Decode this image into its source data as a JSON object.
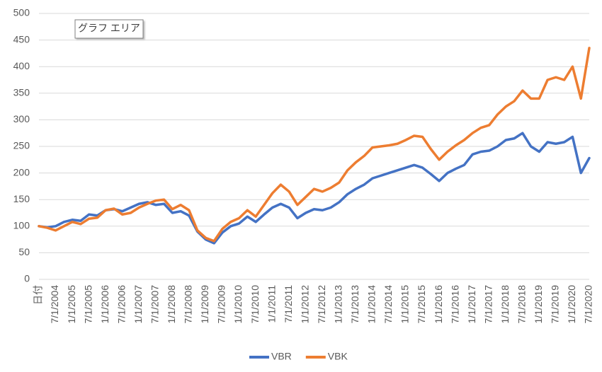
{
  "chart_data": {
    "type": "line",
    "annotation": "グラフ エリア",
    "categories": [
      "日付",
      null,
      "7/1/2004",
      null,
      "1/1/2005",
      null,
      "7/1/2005",
      null,
      "1/1/2006",
      null,
      "7/1/2006",
      null,
      "1/1/2007",
      null,
      "7/1/2007",
      null,
      "1/1/2008",
      null,
      "7/1/2008",
      null,
      "1/1/2009",
      null,
      "7/1/2009",
      null,
      "1/1/2010",
      null,
      "7/1/2010",
      null,
      "1/1/2011",
      null,
      "7/1/2011",
      null,
      "1/1/2012",
      null,
      "7/1/2012",
      null,
      "1/1/2013",
      null,
      "7/1/2013",
      null,
      "1/1/2014",
      null,
      "7/1/2014",
      null,
      "1/1/2015",
      null,
      "7/1/2015",
      null,
      "1/1/2016",
      null,
      "7/1/2016",
      null,
      "1/1/2017",
      null,
      "7/1/2017",
      null,
      "1/1/2018",
      null,
      "7/1/2018",
      null,
      "1/1/2019",
      null,
      "7/1/2019",
      null,
      "1/1/2020",
      null,
      "7/1/2020"
    ],
    "series": [
      {
        "name": "VBR",
        "color": "#4472c4",
        "values": [
          100,
          98,
          100,
          108,
          112,
          110,
          122,
          120,
          130,
          132,
          128,
          135,
          142,
          145,
          140,
          142,
          125,
          128,
          120,
          90,
          75,
          68,
          88,
          100,
          105,
          118,
          108,
          122,
          135,
          142,
          135,
          115,
          125,
          132,
          130,
          135,
          145,
          160,
          170,
          178,
          190,
          195,
          200,
          205,
          210,
          215,
          210,
          198,
          185,
          200,
          208,
          215,
          235,
          240,
          242,
          250,
          262,
          265,
          275,
          250,
          240,
          258,
          255,
          258,
          268,
          200,
          228
        ]
      },
      {
        "name": "VBK",
        "color": "#ed7d31",
        "values": [
          100,
          97,
          92,
          100,
          108,
          104,
          114,
          116,
          130,
          133,
          122,
          125,
          135,
          142,
          148,
          150,
          132,
          140,
          130,
          92,
          78,
          72,
          95,
          108,
          115,
          130,
          118,
          140,
          162,
          178,
          165,
          140,
          155,
          170,
          165,
          172,
          182,
          205,
          220,
          232,
          248,
          250,
          252,
          255,
          262,
          270,
          268,
          245,
          225,
          240,
          252,
          262,
          275,
          285,
          290,
          310,
          325,
          335,
          355,
          340,
          340,
          375,
          380,
          375,
          400,
          340,
          435
        ]
      }
    ],
    "ylim": [
      0,
      500
    ],
    "yticks": [
      0,
      50,
      100,
      150,
      200,
      250,
      300,
      350,
      400,
      450,
      500
    ],
    "grid": true,
    "legend": "bottom"
  }
}
